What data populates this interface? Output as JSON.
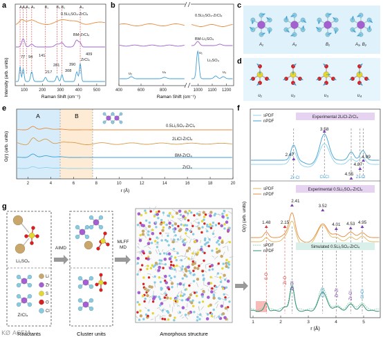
{
  "panels": {
    "a": {
      "letter": "a",
      "ylabel": "Intensity (arb. units)",
      "xlabel": "Raman Shift (cm⁻¹)",
      "xticks": [
        "100",
        "200",
        "300",
        "400",
        "500"
      ],
      "mode_labels": [
        "A₁",
        "A₂",
        "A₃",
        "A₄",
        "B₁",
        "B₃",
        "B₂",
        "A₄"
      ],
      "curve_labels": [
        "0.5Li₂SO₄-ZrCl₄",
        "BM-ZrCl₄",
        "ZrCl₄"
      ],
      "peak_labels": [
        "77",
        "94",
        "141",
        "217",
        "281",
        "308",
        "390",
        "409"
      ]
    },
    "b": {
      "letter": "b",
      "xlabel": "Raman Shift (cm⁻¹)",
      "xticks": [
        "400",
        "600",
        "800",
        "1000",
        "1100",
        "1200"
      ],
      "curve_labels": [
        "0.5Li₂SO₄-ZrCl₄",
        "BM-Li₂SO₄",
        "Li₂SO₄"
      ],
      "peak_labels": [
        "υ₂",
        "υ₄",
        "υ₁",
        "υ₃"
      ]
    },
    "c": {
      "letter": "c",
      "labels": [
        "A₁",
        "A₂",
        "B₁",
        "A₃, B₂"
      ]
    },
    "d": {
      "letter": "d",
      "labels": [
        "υ₁",
        "υ₂",
        "υ₃",
        "υ₄"
      ]
    },
    "e": {
      "letter": "e",
      "ylabel": "G(r) (arb. units)",
      "xlabel": "r (Å)",
      "xticks": [
        "2",
        "4",
        "6",
        "8",
        "10",
        "12",
        "14",
        "16",
        "18",
        "20"
      ],
      "region_labels": [
        "A",
        "B"
      ],
      "curve_labels": [
        "0.5Li₂SO₄-ZrCl₄",
        "2LiCl-ZrCl₄",
        "BM-ZrCl₄",
        "ZrCl₄"
      ]
    },
    "f": {
      "letter": "f",
      "ylabel": "G(r) (arb. units)",
      "xlabel": "r (Å)",
      "xticks": [
        "1",
        "2",
        "3",
        "4",
        "5"
      ],
      "boxes": [
        {
          "title": "Experimental 2LiCl-ZrCl₄",
          "legend": [
            "sPDF",
            "nPDF"
          ]
        },
        {
          "title": "Experimental 0.5Li₂SO₄-ZrCl₄",
          "legend": [
            "sPDF",
            "nPDF"
          ]
        },
        {
          "title": "Simulated 0.5Li₂SO₄-ZrCl₄",
          "legend": [
            "sPDF",
            "nPDF"
          ]
        }
      ],
      "peaks_top": [
        "2.47",
        "3.58",
        "4.55",
        "4.87",
        "4.99"
      ],
      "bonds_top": [
        "Zr-Cl",
        "Cl-Cl",
        "Zr-Cl"
      ],
      "peaks_mid": [
        "1.48",
        "2.15",
        "2.41",
        "3.52",
        "4.01",
        "4.53",
        "4.95"
      ],
      "bonds_bottom": [
        "S-O",
        "Zr-O",
        "Zr-Cl",
        "Cl-Cl",
        "Zr-Zr",
        "Zr-Cl",
        "Cl-Cl"
      ]
    },
    "g": {
      "letter": "g",
      "step1": "AIMD",
      "step2": "MLFF\nMD",
      "legend": [
        "Li",
        "Zr",
        "S",
        "O",
        "Cl"
      ],
      "molecule1": "Li₂SO₄",
      "molecule2": "ZrCl₄",
      "captions": [
        "Reactants",
        "Cluster units",
        "Amorphous structure"
      ]
    }
  },
  "colors": {
    "orange": "#e8893a",
    "purple": "#a25fd6",
    "blue": "#3a9fd8",
    "lightblue": "#8fd0ea",
    "red": "#d63a3a",
    "gray": "#8a8a8a",
    "li": "#c9a76a",
    "zr": "#a45fd0",
    "s": "#e6d630",
    "o": "#d82020",
    "cl": "#86cbe2"
  },
  "watermark": "KØ ACEM"
}
